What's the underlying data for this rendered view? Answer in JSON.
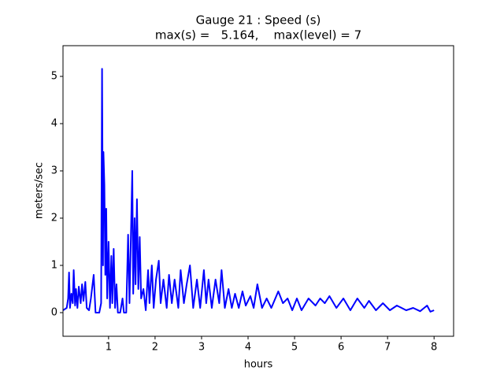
{
  "chart_data": {
    "type": "line",
    "title": "Gauge 21 : Speed (s)",
    "subtitle": "max(s) =   5.164,    max(level) = 7",
    "xlabel": "hours",
    "ylabel": "meters/sec",
    "x": [
      0.02,
      0.1,
      0.13,
      0.15,
      0.17,
      0.2,
      0.23,
      0.25,
      0.28,
      0.3,
      0.33,
      0.36,
      0.4,
      0.43,
      0.46,
      0.5,
      0.53,
      0.58,
      0.62,
      0.68,
      0.72,
      0.8,
      0.84,
      0.86,
      0.88,
      0.89,
      0.91,
      0.93,
      0.95,
      0.97,
      1.0,
      1.03,
      1.06,
      1.08,
      1.11,
      1.14,
      1.17,
      1.2,
      1.25,
      1.3,
      1.33,
      1.38,
      1.42,
      1.45,
      1.48,
      1.51,
      1.53,
      1.56,
      1.58,
      1.61,
      1.64,
      1.67,
      1.7,
      1.75,
      1.8,
      1.85,
      1.88,
      1.93,
      1.97,
      2.02,
      2.08,
      2.12,
      2.18,
      2.25,
      2.3,
      2.36,
      2.42,
      2.5,
      2.55,
      2.62,
      2.68,
      2.75,
      2.82,
      2.9,
      2.97,
      3.05,
      3.1,
      3.15,
      3.22,
      3.3,
      3.38,
      3.43,
      3.5,
      3.58,
      3.65,
      3.72,
      3.8,
      3.88,
      3.95,
      4.05,
      4.12,
      4.2,
      4.3,
      4.4,
      4.5,
      4.65,
      4.75,
      4.85,
      4.95,
      5.05,
      5.15,
      5.3,
      5.45,
      5.55,
      5.65,
      5.75,
      5.9,
      6.05,
      6.2,
      6.35,
      6.5,
      6.6,
      6.75,
      6.9,
      7.05,
      7.2,
      7.4,
      7.55,
      7.7,
      7.85,
      7.92,
      8.0
    ],
    "series": [
      {
        "name": "s",
        "color": "#0000ff",
        "values": [
          0.05,
          0.1,
          0.3,
          0.85,
          0.1,
          0.4,
          0.2,
          0.9,
          0.15,
          0.5,
          0.1,
          0.55,
          0.2,
          0.6,
          0.25,
          0.65,
          0.1,
          0.05,
          0.3,
          0.8,
          0.0,
          0.0,
          0.2,
          5.16,
          1.0,
          3.4,
          2.7,
          0.8,
          2.2,
          0.3,
          1.5,
          0.1,
          1.2,
          0.2,
          1.35,
          0.1,
          0.6,
          0.0,
          0.0,
          0.3,
          0.0,
          0.0,
          1.65,
          0.2,
          1.6,
          3.0,
          0.4,
          2.0,
          0.6,
          2.4,
          0.5,
          1.6,
          0.3,
          0.5,
          0.05,
          0.9,
          0.2,
          1.0,
          0.1,
          0.7,
          1.1,
          0.2,
          0.7,
          0.1,
          0.8,
          0.2,
          0.7,
          0.1,
          0.9,
          0.2,
          0.6,
          1.0,
          0.1,
          0.7,
          0.1,
          0.9,
          0.2,
          0.7,
          0.1,
          0.7,
          0.2,
          0.9,
          0.1,
          0.5,
          0.1,
          0.4,
          0.1,
          0.45,
          0.15,
          0.35,
          0.1,
          0.6,
          0.1,
          0.3,
          0.1,
          0.45,
          0.2,
          0.3,
          0.05,
          0.3,
          0.05,
          0.3,
          0.15,
          0.3,
          0.2,
          0.35,
          0.1,
          0.3,
          0.05,
          0.3,
          0.1,
          0.25,
          0.05,
          0.2,
          0.05,
          0.15,
          0.05,
          0.1,
          0.03,
          0.15,
          0.02,
          0.05
        ]
      }
    ],
    "xlim": [
      0.02,
      8.42
    ],
    "ylim": [
      -0.5,
      5.65
    ],
    "xticks": [
      1,
      2,
      3,
      4,
      5,
      6,
      7,
      8
    ],
    "yticks": [
      0,
      1,
      2,
      3,
      4,
      5
    ],
    "grid": false
  }
}
